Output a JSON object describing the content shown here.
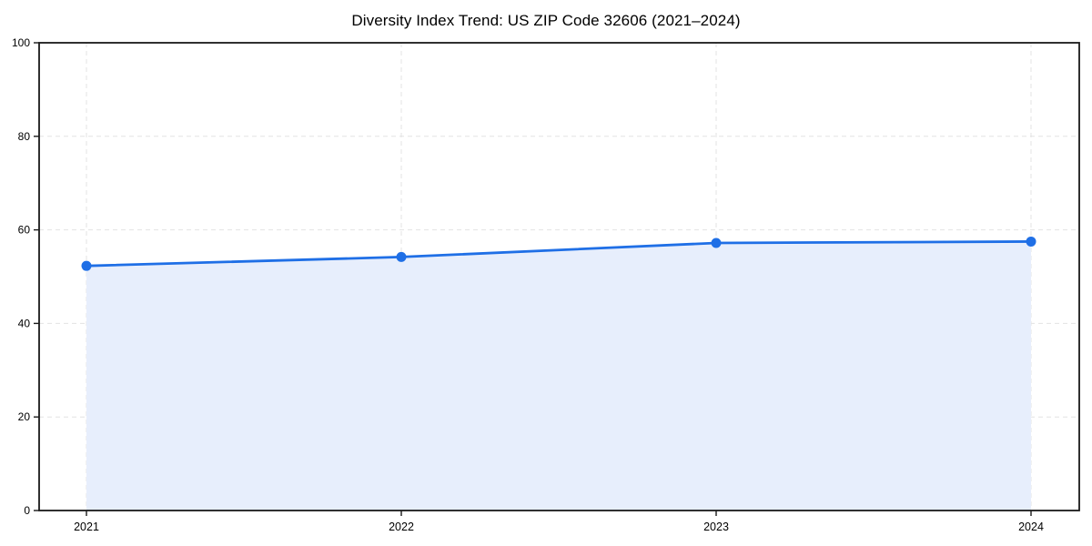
{
  "figure": {
    "title": "Diversity Index Trend: US ZIP Code 32606 (2021–2024)"
  },
  "chart_data": {
    "type": "area",
    "title": "Diversity Index Trend: US ZIP Code 32606 (2021–2024)",
    "series": [
      {
        "name": "Diversity Index",
        "values": [
          52.3,
          54.2,
          57.2,
          57.5
        ]
      }
    ],
    "categories": [
      "2021",
      "2022",
      "2023",
      "2024"
    ],
    "xlabel": "",
    "ylabel": "",
    "ylim": [
      0,
      100
    ],
    "yticks": [
      0,
      20,
      40,
      60,
      80,
      100
    ],
    "grid": true,
    "grid_style": "dashed",
    "legend_position": "none",
    "marker": "circle",
    "colors": {
      "line": "#1f6fe6",
      "marker": "#1f6fe6",
      "fill": "#e7eefc",
      "grid": "#e3e3e3",
      "axis": "#1a1a1a",
      "tick_text": "#000000",
      "background": "#ffffff"
    }
  }
}
